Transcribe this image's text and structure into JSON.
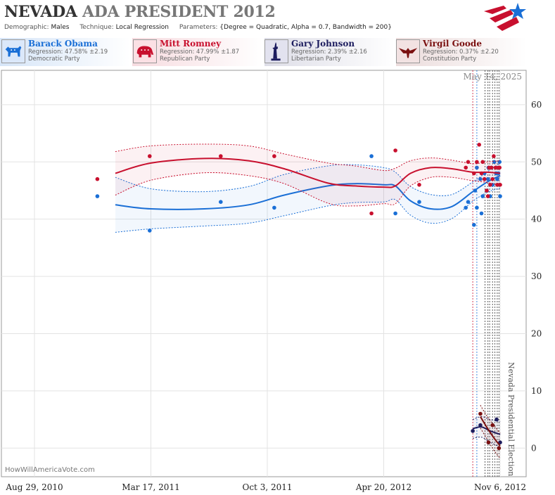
{
  "header": {
    "state": "NEVADA",
    "title_rest": "ADA PRESIDENT 2012",
    "demographic_label": "Demographic:",
    "demographic_value": "Males",
    "technique_label": "Technique:",
    "technique_value": "Local Regression",
    "parameters_label": "Parameters:",
    "parameters_value": "{Degree = Quadratic, Alpha = 0.7, Bandwidth = 200}"
  },
  "candidates": [
    {
      "name": "Barack Obama",
      "regression": "Regression: 47.58% ±2.19",
      "party": "Democratic Party",
      "color": "#1a6fd6",
      "icon": "donkey-icon"
    },
    {
      "name": "Mitt Romney",
      "regression": "Regression: 47.99% ±1.87",
      "party": "Republican Party",
      "color": "#c8102e",
      "icon": "elephant-icon"
    },
    {
      "name": "Gary Johnson",
      "regression": "Regression: 2.39% ±2.16",
      "party": "Libertarian Party",
      "color": "#1c1c5e",
      "icon": "liberty-icon"
    },
    {
      "name": "Virgil Goode",
      "regression": "Regression: 0.37% ±2.20",
      "party": "Constitution Party",
      "color": "#7a1010",
      "icon": "eagle-icon"
    }
  ],
  "chart_data": {
    "type": "line",
    "date_label": "May 14, 2025",
    "watermark": "HowWillAmericaVote.com",
    "election_label": "Nevada Presidential Election",
    "x_ticks": [
      "Aug 29, 2010",
      "Mar 17, 2011",
      "Oct 3, 2011",
      "Apr 20, 2012",
      "Nov 6, 2012"
    ],
    "x_range": [
      "2010-08-29",
      "2012-11-06"
    ],
    "y_ticks": [
      0,
      10,
      20,
      30,
      40,
      50,
      60
    ],
    "ylim": [
      -5,
      66
    ],
    "grid": true,
    "poll_dates": [
      "2012-09-20",
      "2012-09-27",
      "2012-10-11",
      "2012-10-16",
      "2012-10-19",
      "2012-10-24",
      "2012-10-28",
      "2012-11-01",
      "2012-11-04"
    ],
    "series": [
      {
        "name": "Barack Obama",
        "color": "#1a6fd6",
        "trend_x": [
          "2011-01-15",
          "2011-03-17",
          "2011-06-17",
          "2011-09-01",
          "2011-11-01",
          "2012-01-15",
          "2012-03-01",
          "2012-04-20",
          "2012-05-10",
          "2012-06-05",
          "2012-07-10",
          "2012-08-15",
          "2012-09-20",
          "2012-10-15",
          "2012-11-06"
        ],
        "trend": [
          42.5,
          41.8,
          41.8,
          42.5,
          44.2,
          45.8,
          46.2,
          46.0,
          45.8,
          43.2,
          41.8,
          42.2,
          44.8,
          46.5,
          47.6
        ],
        "upper": [
          47.3,
          45.3,
          44.8,
          45.7,
          47.8,
          49.3,
          49.5,
          49.0,
          48.2,
          45.7,
          44.3,
          44.3,
          46.5,
          48.3,
          49.8
        ],
        "lower": [
          37.7,
          38.3,
          38.8,
          39.3,
          40.6,
          42.3,
          42.9,
          43.0,
          43.4,
          40.7,
          39.3,
          40.1,
          43.1,
          44.7,
          45.4
        ],
        "points": [
          [
            "2010-12-15",
            44
          ],
          [
            "2011-03-15",
            38
          ],
          [
            "2011-07-15",
            43
          ],
          [
            "2011-10-15",
            42
          ],
          [
            "2012-03-30",
            51
          ],
          [
            "2012-05-10",
            41
          ],
          [
            "2012-06-20",
            43
          ],
          [
            "2012-09-08",
            42
          ],
          [
            "2012-09-12",
            43
          ],
          [
            "2012-09-22",
            39
          ],
          [
            "2012-09-24",
            45
          ],
          [
            "2012-09-27",
            42
          ],
          [
            "2012-09-27",
            49
          ],
          [
            "2012-10-03",
            47
          ],
          [
            "2012-10-05",
            41
          ],
          [
            "2012-10-07",
            44
          ],
          [
            "2012-10-10",
            48
          ],
          [
            "2012-10-16",
            47
          ],
          [
            "2012-10-17",
            49
          ],
          [
            "2012-10-20",
            44
          ],
          [
            "2012-10-22",
            49
          ],
          [
            "2012-10-24",
            46
          ],
          [
            "2012-10-27",
            50
          ],
          [
            "2012-10-30",
            48
          ],
          [
            "2012-11-01",
            47
          ],
          [
            "2012-11-03",
            48
          ],
          [
            "2012-11-05",
            50
          ],
          [
            "2012-11-06",
            44
          ]
        ]
      },
      {
        "name": "Mitt Romney",
        "color": "#c8102e",
        "trend_x": [
          "2011-01-15",
          "2011-03-17",
          "2011-06-17",
          "2011-09-01",
          "2011-11-01",
          "2012-01-15",
          "2012-03-01",
          "2012-04-20",
          "2012-05-10",
          "2012-06-05",
          "2012-07-10",
          "2012-08-15",
          "2012-09-20",
          "2012-10-15",
          "2012-11-06"
        ],
        "trend": [
          48.0,
          49.8,
          50.6,
          50.2,
          48.8,
          46.3,
          45.8,
          45.6,
          45.8,
          48.0,
          49.0,
          48.8,
          48.2,
          48.2,
          48.0
        ],
        "upper": [
          51.8,
          52.8,
          53.1,
          52.8,
          51.4,
          49.8,
          49.3,
          48.5,
          48.9,
          50.2,
          50.7,
          50.3,
          49.7,
          50.0,
          50.2
        ],
        "lower": [
          44.2,
          46.8,
          48.1,
          47.6,
          46.2,
          42.8,
          42.3,
          42.7,
          42.7,
          45.8,
          47.3,
          47.3,
          46.7,
          46.4,
          45.8
        ],
        "points": [
          [
            "2010-12-15",
            47
          ],
          [
            "2011-03-15",
            51
          ],
          [
            "2011-07-15",
            51
          ],
          [
            "2011-10-15",
            51
          ],
          [
            "2012-03-30",
            41
          ],
          [
            "2012-05-10",
            52
          ],
          [
            "2012-06-20",
            46
          ],
          [
            "2012-09-08",
            49
          ],
          [
            "2012-09-12",
            50
          ],
          [
            "2012-09-22",
            48
          ],
          [
            "2012-09-27",
            50
          ],
          [
            "2012-10-01",
            53
          ],
          [
            "2012-10-05",
            48
          ],
          [
            "2012-10-07",
            50
          ],
          [
            "2012-10-10",
            47
          ],
          [
            "2012-10-14",
            45
          ],
          [
            "2012-10-16",
            44
          ],
          [
            "2012-10-18",
            49
          ],
          [
            "2012-10-20",
            46
          ],
          [
            "2012-10-22",
            49
          ],
          [
            "2012-10-24",
            47
          ],
          [
            "2012-10-26",
            51
          ],
          [
            "2012-10-29",
            49
          ],
          [
            "2012-11-01",
            46
          ],
          [
            "2012-11-03",
            49
          ],
          [
            "2012-11-05",
            49
          ],
          [
            "2012-11-06",
            46
          ]
        ]
      },
      {
        "name": "Gary Johnson",
        "color": "#1c1c5e",
        "trend_x": [
          "2012-09-20",
          "2012-10-05",
          "2012-10-20",
          "2012-11-06"
        ],
        "trend": [
          3.4,
          3.7,
          3.0,
          2.4
        ],
        "upper": [
          5.0,
          5.5,
          5.0,
          4.6
        ],
        "lower": [
          1.7,
          1.9,
          1.0,
          0.2
        ],
        "points": [
          [
            "2012-09-20",
            3
          ],
          [
            "2012-10-03",
            4
          ],
          [
            "2012-10-17",
            1
          ],
          [
            "2012-10-31",
            5
          ],
          [
            "2012-11-06",
            1
          ]
        ]
      },
      {
        "name": "Virgil Goode",
        "color": "#7a1010",
        "trend_x": [
          "2012-10-03",
          "2012-10-15",
          "2012-10-27",
          "2012-11-06"
        ],
        "trend": [
          5.5,
          3.5,
          1.7,
          0.4
        ],
        "upper": [
          7.5,
          5.5,
          3.9,
          2.6
        ],
        "lower": [
          3.5,
          1.5,
          -0.5,
          -1.8
        ],
        "points": [
          [
            "2012-10-03",
            6
          ],
          [
            "2012-10-17",
            1
          ],
          [
            "2012-10-24",
            4
          ],
          [
            "2012-11-04",
            0
          ]
        ]
      }
    ]
  }
}
